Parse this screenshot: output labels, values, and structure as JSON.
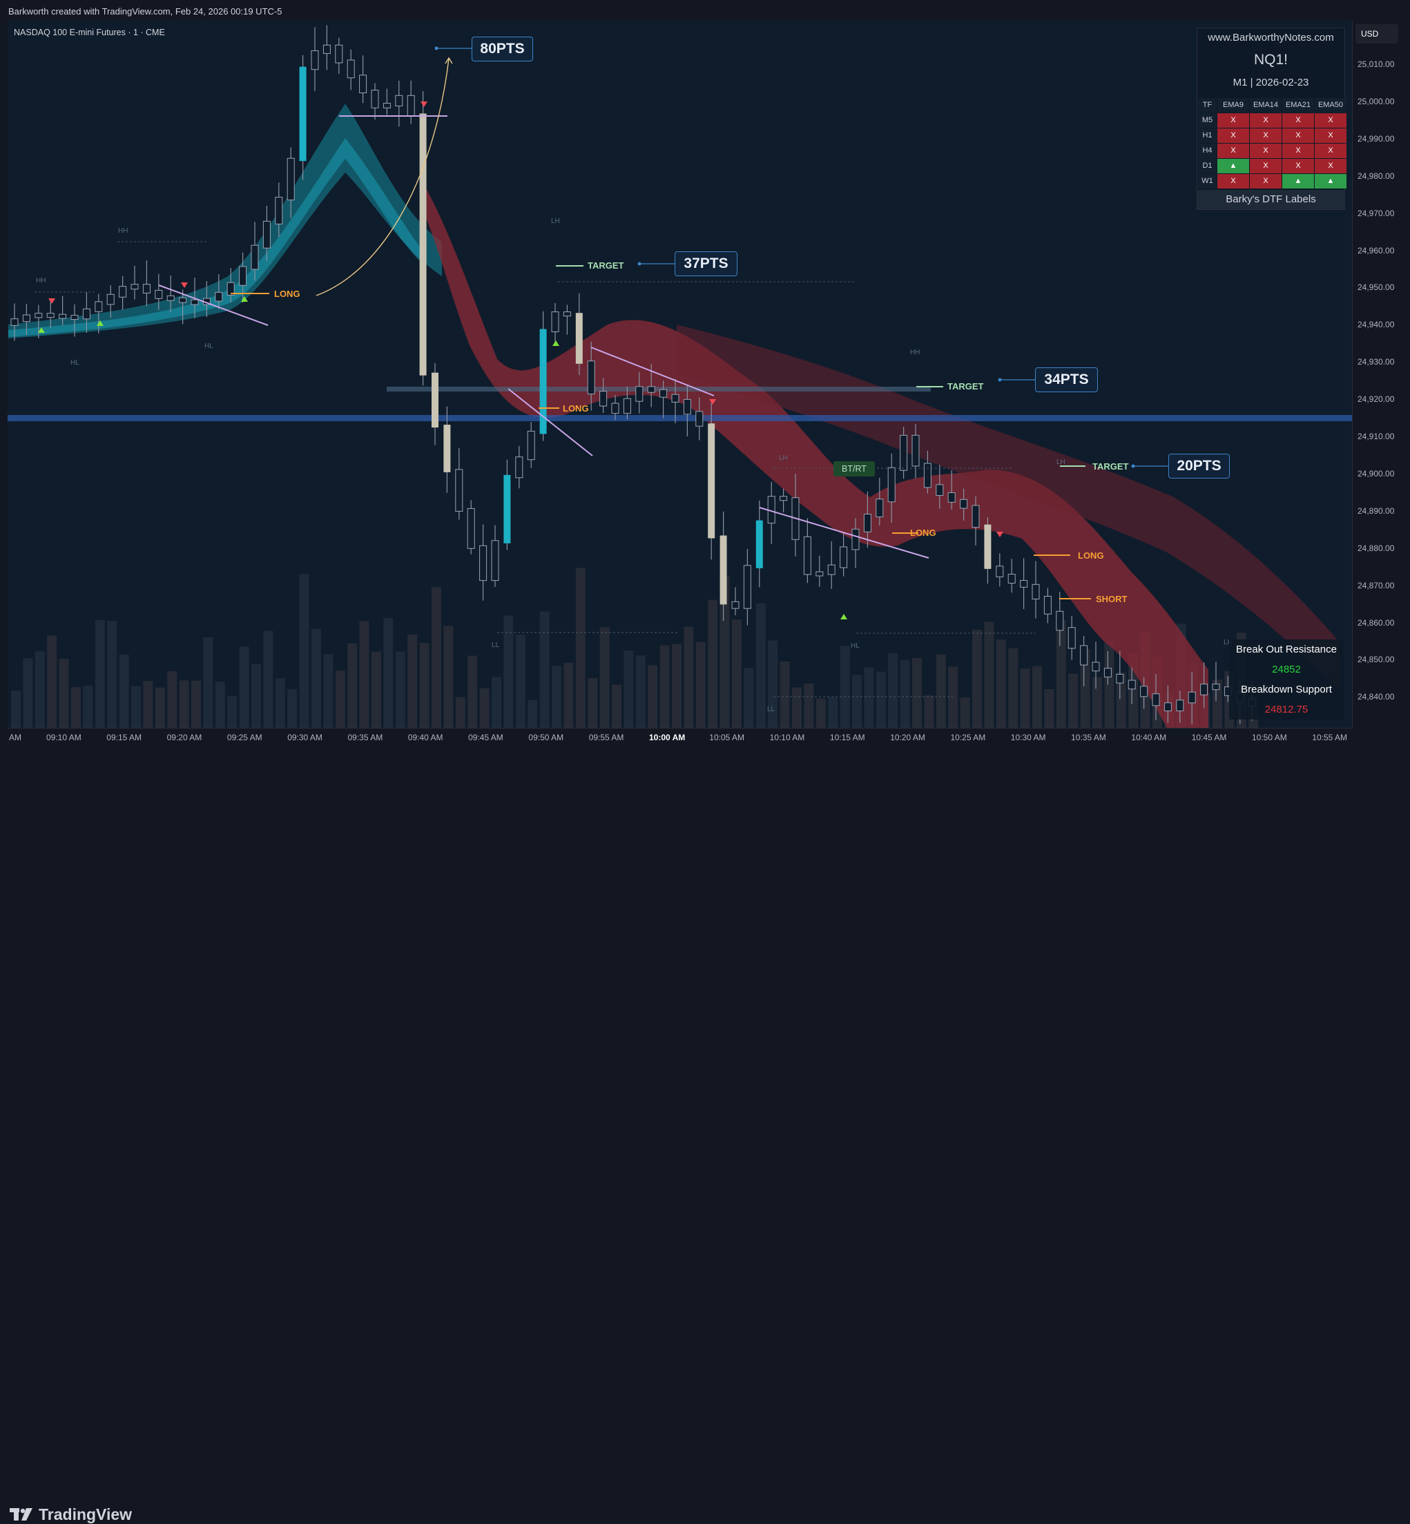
{
  "header": {
    "credit": "Barkworth created with TradingView.com, Feb 24, 2026 00:19 UTC-5"
  },
  "chart": {
    "symbol_line": "NASDAQ 100 E-mini Futures · 1 · CME",
    "currency": "USD",
    "price_ticks": [
      "25,010.00",
      "25,000.00",
      "24,990.00",
      "24,980.00",
      "24,970.00",
      "24,960.00",
      "24,950.00",
      "24,940.00",
      "24,930.00",
      "24,920.00",
      "24,910.00",
      "24,900.00",
      "24,890.00",
      "24,880.00",
      "24,870.00",
      "24,860.00",
      "24,850.00",
      "24,840.00"
    ],
    "time_ticks": [
      "AM",
      "09:10 AM",
      "09:15 AM",
      "09:20 AM",
      "09:25 AM",
      "09:30 AM",
      "09:35 AM",
      "09:40 AM",
      "09:45 AM",
      "09:50 AM",
      "09:55 AM",
      "10:00 AM",
      "10:05 AM",
      "10:10 AM",
      "10:15 AM",
      "10:20 AM",
      "10:25 AM",
      "10:30 AM",
      "10:35 AM",
      "10:40 AM",
      "10:45 AM",
      "10:50 AM",
      "10:55 AM"
    ],
    "pts_badges": [
      "80PTS",
      "37PTS",
      "34PTS",
      "20PTS"
    ],
    "labels": {
      "long": "LONG",
      "short": "SHORT",
      "target": "TARGET",
      "btrt": "BT/RT",
      "hh": "HH",
      "hl": "HL",
      "lh": "LH",
      "ll": "LL"
    },
    "colors": {
      "bull": "#1db2c6",
      "bear": "#c9c4b4",
      "ribbon_up": "#146b7c",
      "ribbon_down": "#8e2a37",
      "long": "#f7a035",
      "target": "#a5e0b1",
      "trend": "#c8a6e8"
    }
  },
  "info_panel": {
    "site": "www.BarkworthyNotes.com",
    "symbol": "NQ1!",
    "timeframe": "M1  |  2026-02-23",
    "columns": [
      "TF",
      "EMA9",
      "EMA14",
      "EMA21",
      "EMA50"
    ],
    "rows": [
      {
        "tf": "M5",
        "cells": [
          "X",
          "X",
          "X",
          "X"
        ]
      },
      {
        "tf": "H1",
        "cells": [
          "X",
          "X",
          "X",
          "X"
        ]
      },
      {
        "tf": "H4",
        "cells": [
          "X",
          "X",
          "X",
          "X"
        ]
      },
      {
        "tf": "D1",
        "cells": [
          "▲",
          "X",
          "X",
          "X"
        ]
      },
      {
        "tf": "W1",
        "cells": [
          "X",
          "X",
          "▲",
          "▲"
        ]
      }
    ],
    "footer": "Barky's DTF Labels"
  },
  "levels_panel": {
    "resistance_label": "Break Out Resistance",
    "resistance_value": "24852",
    "support_label": "Breakdown Support",
    "support_value": "24812.75"
  },
  "brand": "TradingView"
}
